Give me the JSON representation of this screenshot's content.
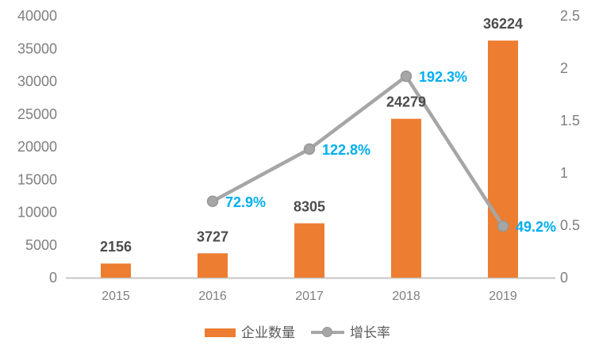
{
  "legend": {
    "series1": "企业数量",
    "series2": "增长率"
  },
  "colors": {
    "bar": "#ED7D31",
    "line": "#A6A6A6",
    "marker_fill": "#A6A6A6",
    "marker_stroke": "#979797",
    "value_label": "#4D4D4D",
    "percent_label": "#00AEEF",
    "axis_text": "#7F7F7F",
    "legend_text": "#595959",
    "axis_line": "#C6C6C6",
    "background": "#FFFFFF"
  },
  "chart_data": {
    "type": "bar+line",
    "title": "",
    "categories": [
      "2015",
      "2016",
      "2017",
      "2018",
      "2019"
    ],
    "series": [
      {
        "name": "企业数量",
        "type": "bar",
        "axis": "left",
        "values": [
          2156,
          3727,
          8305,
          24279,
          36224
        ],
        "data_labels": [
          "2156",
          "3727",
          "8305",
          "24279",
          "36224"
        ]
      },
      {
        "name": "增长率",
        "type": "line",
        "axis": "right",
        "values": [
          null,
          0.729,
          1.228,
          1.923,
          0.492
        ],
        "data_labels": [
          null,
          "72.9%",
          "122.8%",
          "192.3%",
          "49.2%"
        ]
      }
    ],
    "left_axis": {
      "min": 0,
      "max": 40000,
      "step": 5000,
      "ticks": [
        "0",
        "5000",
        "10000",
        "15000",
        "20000",
        "25000",
        "30000",
        "35000",
        "40000"
      ]
    },
    "right_axis": {
      "min": 0,
      "max": 2.5,
      "step": 0.5,
      "ticks": [
        "0",
        "0.5",
        "1",
        "1.5",
        "2",
        "2.5"
      ]
    },
    "gridlines": false,
    "legend_position": "bottom"
  }
}
